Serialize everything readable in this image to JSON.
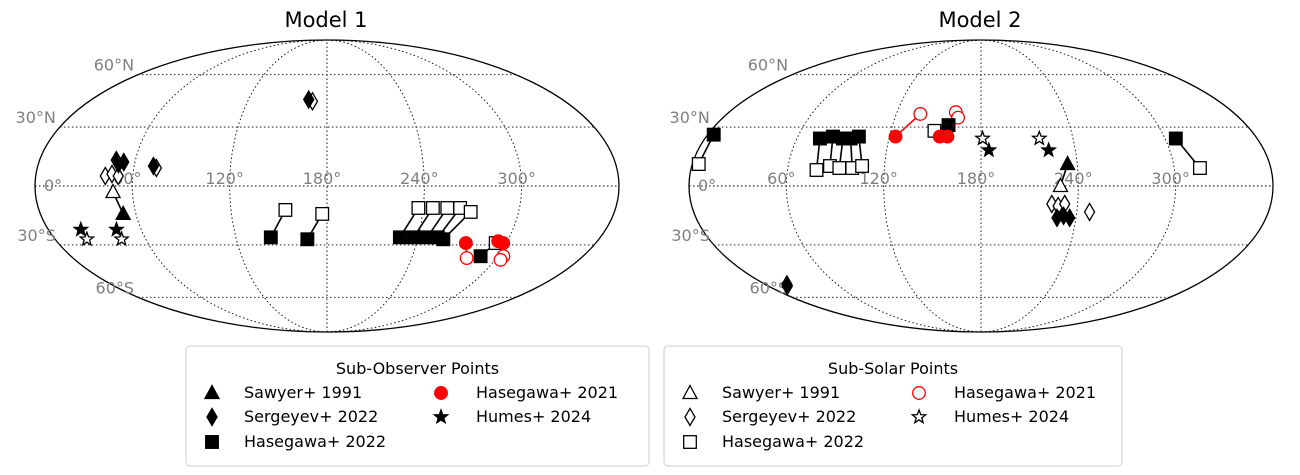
{
  "chart_data": [
    {
      "type": "scatter",
      "projection": "mollweide",
      "title": "Model 1",
      "lat_ticks": [
        "60°N",
        "30°N",
        "0°",
        "30°S",
        "60°S"
      ],
      "lon_ticks": [
        "0°",
        "60°",
        "120°",
        "180°",
        "240°",
        "300°"
      ],
      "grid": true,
      "legend": {
        "title": "Sub-Observer Points",
        "placement": "bottom",
        "entries": [
          {
            "label": "Sawyer+ 1991",
            "marker": "triangle",
            "fill": "#000000"
          },
          {
            "label": "Sergeyev+ 2022",
            "marker": "diamond",
            "fill": "#000000"
          },
          {
            "label": "Hasegawa+ 2022",
            "marker": "square",
            "fill": "#000000"
          },
          {
            "label": "Hasegawa+ 2021",
            "marker": "circle",
            "fill": "#ff0000"
          },
          {
            "label": "Humes+ 2024",
            "marker": "star",
            "fill": "#000000"
          }
        ]
      },
      "series": [
        {
          "dataset": "Sawyer+ 1991",
          "marker": "triangle",
          "filled": true,
          "color": "#000000",
          "points": [
            [
              52,
              -14
            ]
          ],
          "linked": [
            [
              52,
              -14,
              48,
              -3
            ]
          ]
        },
        {
          "dataset": "Sawyer+ 1991",
          "marker": "triangle",
          "filled": false,
          "color": "#000000",
          "points": [
            [
              48,
              -3
            ]
          ]
        },
        {
          "dataset": "Sergeyev+ 2022",
          "marker": "diamond",
          "filled": true,
          "color": "#000000",
          "points": [
            [
              48,
              13
            ],
            [
              50,
              11
            ],
            [
              53,
              12
            ],
            [
              72,
              10
            ],
            [
              166,
              45
            ]
          ]
        },
        {
          "dataset": "Sergeyev+ 2022",
          "marker": "diamond",
          "filled": false,
          "color": "#000000",
          "points": [
            [
              43,
              5
            ],
            [
              47,
              6
            ],
            [
              51,
              5
            ],
            [
              74,
              9
            ],
            [
              169,
              44
            ]
          ]
        },
        {
          "dataset": "Hasegawa+ 2022",
          "marker": "square",
          "filled": true,
          "color": "#000000",
          "points": [
            [
              143,
              -26
            ],
            [
              167,
              -27
            ],
            [
              228,
              -26
            ],
            [
              237,
              -26
            ],
            [
              246,
              -26
            ],
            [
              253,
              -26
            ],
            [
              257,
              -27
            ],
            [
              288,
              -36
            ]
          ],
          "linked": [
            [
              143,
              -26,
              154,
              -12
            ],
            [
              167,
              -27,
              177,
              -14
            ],
            [
              228,
              -26,
              237,
              -11
            ],
            [
              237,
              -26,
              246,
              -11
            ],
            [
              246,
              -26,
              255,
              -11
            ],
            [
              253,
              -26,
              263,
              -11
            ],
            [
              257,
              -27,
              270,
              -13
            ],
            [
              288,
              -36,
              293,
              -29
            ]
          ]
        },
        {
          "dataset": "Hasegawa+ 2022",
          "marker": "square",
          "filled": false,
          "color": "#000000",
          "points": [
            [
              154,
              -12
            ],
            [
              177,
              -14
            ],
            [
              237,
              -11
            ],
            [
              246,
              -11
            ],
            [
              255,
              -11
            ],
            [
              263,
              -11
            ],
            [
              270,
              -13
            ],
            [
              293,
              -29
            ]
          ]
        },
        {
          "dataset": "Hasegawa+ 2021",
          "marker": "circle",
          "filled": true,
          "color": "#ff0000",
          "points": [
            [
              273,
              -29
            ],
            [
              294,
              -28
            ],
            [
              298,
              -29
            ]
          ],
          "linked": [
            [
              273,
              -29,
              279,
              -37
            ],
            [
              294,
              -28,
              304,
              -36
            ],
            [
              298,
              -29,
              304,
              -38
            ]
          ]
        },
        {
          "dataset": "Hasegawa+ 2021",
          "marker": "circle",
          "filled": false,
          "color": "#ff0000",
          "points": [
            [
              279,
              -37
            ],
            [
              304,
              -36
            ],
            [
              304,
              -38
            ]
          ]
        },
        {
          "dataset": "Humes+ 2024",
          "marker": "star",
          "filled": true,
          "color": "#000000",
          "points": [
            [
              21,
              -22
            ],
            [
              44,
              -22
            ]
          ]
        },
        {
          "dataset": "Humes+ 2024",
          "marker": "star",
          "filled": false,
          "color": "#000000",
          "points": [
            [
              21,
              -27
            ],
            [
              44,
              -27
            ]
          ]
        }
      ]
    },
    {
      "type": "scatter",
      "projection": "mollweide",
      "title": "Model 2",
      "lat_ticks": [
        "60°N",
        "30°N",
        "0°",
        "30°S",
        "60°S"
      ],
      "lon_ticks": [
        "0°",
        "60°",
        "120°",
        "180°",
        "240°",
        "300°"
      ],
      "grid": true,
      "legend": {
        "title": "Sub-Solar Points",
        "placement": "bottom",
        "entries": [
          {
            "label": "Sawyer+ 1991",
            "marker": "triangle",
            "fill": "none"
          },
          {
            "label": "Sergeyev+ 2022",
            "marker": "diamond",
            "fill": "none"
          },
          {
            "label": "Hasegawa+ 2022",
            "marker": "square",
            "fill": "none"
          },
          {
            "label": "Hasegawa+ 2021",
            "marker": "circle",
            "fill": "none",
            "edge": "#ff0000"
          },
          {
            "label": "Humes+ 2024",
            "marker": "star",
            "fill": "none"
          }
        ]
      },
      "series": [
        {
          "dataset": "Sawyer+ 1991",
          "marker": "triangle",
          "filled": true,
          "color": "#000000",
          "points": [
            [
              234,
              11
            ]
          ],
          "linked": [
            [
              234,
              11,
              229,
              0
            ]
          ]
        },
        {
          "dataset": "Sawyer+ 1991",
          "marker": "triangle",
          "filled": false,
          "color": "#000000",
          "points": [
            [
              229,
              0
            ]
          ]
        },
        {
          "dataset": "Sergeyev+ 2022",
          "marker": "diamond",
          "filled": true,
          "color": "#000000",
          "points": [
            [
              228,
              -16
            ],
            [
              232,
              -15
            ],
            [
              236,
              -16
            ],
            [
              16,
              -53
            ]
          ]
        },
        {
          "dataset": "Sergeyev+ 2022",
          "marker": "diamond",
          "filled": false,
          "color": "#000000",
          "points": [
            [
              224,
              -9
            ],
            [
              228,
              -10
            ],
            [
              232,
              -9
            ],
            [
              248,
              -13
            ],
            [
              18,
              -52
            ]
          ]
        },
        {
          "dataset": "Hasegawa+ 2022",
          "marker": "square",
          "filled": true,
          "color": "#000000",
          "points": [
            [
              4,
              26
            ],
            [
              75,
              24
            ],
            [
              83,
              25
            ],
            [
              90,
              24
            ],
            [
              95,
              24
            ],
            [
              100,
              25
            ],
            [
              158,
              31
            ],
            [
              307,
              24
            ]
          ],
          "linked": [
            [
              4,
              26,
              4,
              11
            ],
            [
              75,
              24,
              78,
              8
            ],
            [
              83,
              25,
              86,
              10
            ],
            [
              90,
              24,
              92,
              9
            ],
            [
              95,
              24,
              100,
              9
            ],
            [
              100,
              25,
              106,
              10
            ],
            [
              158,
              31,
              149,
              28
            ],
            [
              307,
              24,
              316,
              9
            ]
          ]
        },
        {
          "dataset": "Hasegawa+ 2022",
          "marker": "square",
          "filled": false,
          "color": "#000000",
          "points": [
            [
              4,
              11
            ],
            [
              78,
              8
            ],
            [
              86,
              10
            ],
            [
              92,
              9
            ],
            [
              100,
              9
            ],
            [
              106,
              10
            ],
            [
              149,
              28
            ],
            [
              316,
              9
            ]
          ]
        },
        {
          "dataset": "Hasegawa+ 2021",
          "marker": "circle",
          "filled": true,
          "color": "#ff0000",
          "points": [
            [
              124,
              25
            ],
            [
              153,
              25
            ],
            [
              158,
              25
            ]
          ],
          "linked": [
            [
              124,
              25,
              137,
              37
            ],
            [
              153,
              25,
              162,
              38
            ],
            [
              158,
              25,
              164,
              35
            ]
          ]
        },
        {
          "dataset": "Hasegawa+ 2021",
          "marker": "circle",
          "filled": false,
          "color": "#ff0000",
          "points": [
            [
              137,
              37
            ],
            [
              162,
              38
            ],
            [
              164,
              35
            ]
          ]
        },
        {
          "dataset": "Humes+ 2024",
          "marker": "star",
          "filled": true,
          "color": "#000000",
          "points": [
            [
              185,
              18
            ],
            [
              223,
              18
            ]
          ]
        },
        {
          "dataset": "Humes+ 2024",
          "marker": "star",
          "filled": false,
          "color": "#000000",
          "points": [
            [
              181,
              24
            ],
            [
              218,
              24
            ]
          ]
        }
      ]
    }
  ]
}
